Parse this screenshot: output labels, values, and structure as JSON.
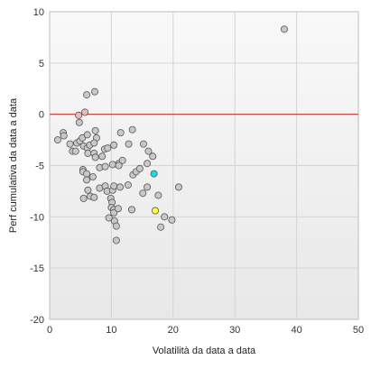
{
  "chart_data": {
    "type": "scatter",
    "title": "",
    "xlabel": "Volatilità da data a data",
    "ylabel": "Perf cumulativa da data a data",
    "xlim": [
      0,
      50
    ],
    "ylim": [
      -20,
      10
    ],
    "x_ticks": [
      "0",
      "10",
      "20",
      "30",
      "40",
      "50"
    ],
    "y_ticks": [
      "10",
      "5",
      "0",
      "-5",
      "-10",
      "-15",
      "-20"
    ],
    "grid": true,
    "reference_line": {
      "y": 0,
      "color": "#c0392b"
    },
    "colors": {
      "point_default": "#c8c8c8",
      "point_pink": "#f0b8b8",
      "point_cyan": "#22d8e6",
      "point_yellow": "#ffff33",
      "point_stroke": "#555555",
      "plot_bg_top": "#f9f9f9",
      "plot_bg_bottom": "#e8e8e8",
      "grid": "#d4d4d4"
    },
    "series": [
      {
        "color": "default",
        "points": [
          [
            38,
            8.3
          ],
          [
            7.3,
            2.2
          ],
          [
            6,
            1.9
          ],
          [
            4.8,
            -0.8
          ],
          [
            1.3,
            -2.5
          ],
          [
            2.2,
            -1.8
          ],
          [
            2.3,
            -2.1
          ],
          [
            3.3,
            -2.9
          ],
          [
            3.7,
            -3.6
          ],
          [
            4.2,
            -3.6
          ],
          [
            4.4,
            -2.8
          ],
          [
            4.9,
            -2.6
          ],
          [
            5.3,
            -2.3
          ],
          [
            6.1,
            -2.0
          ],
          [
            5.5,
            -3.1
          ],
          [
            6.1,
            -3.3
          ],
          [
            6.5,
            -3.0
          ],
          [
            7.4,
            -1.6
          ],
          [
            7.6,
            -2.3
          ],
          [
            7.2,
            -2.8
          ],
          [
            6.2,
            -3.8
          ],
          [
            7.2,
            -3.8
          ],
          [
            7.4,
            -4.2
          ],
          [
            8.5,
            -4.1
          ],
          [
            8.9,
            -3.4
          ],
          [
            9.4,
            -3.3
          ],
          [
            10.4,
            -3.0
          ],
          [
            11.5,
            -1.8
          ],
          [
            13.4,
            -1.5
          ],
          [
            12.8,
            -2.9
          ],
          [
            15.2,
            -2.9
          ],
          [
            16.0,
            -3.6
          ],
          [
            11.2,
            -4.8
          ],
          [
            11.8,
            -4.5
          ],
          [
            10.2,
            -4.9
          ],
          [
            11.2,
            -5.0
          ],
          [
            8.1,
            -5.2
          ],
          [
            9.0,
            -5.1
          ],
          [
            5.4,
            -5.4
          ],
          [
            5.4,
            -5.6
          ],
          [
            6.0,
            -5.8
          ],
          [
            6.0,
            -6.4
          ],
          [
            7.0,
            -6.1
          ],
          [
            8.1,
            -7.2
          ],
          [
            9.0,
            -7.0
          ],
          [
            9.3,
            -7.5
          ],
          [
            10.2,
            -7.4
          ],
          [
            10.4,
            -7.0
          ],
          [
            11.4,
            -7.1
          ],
          [
            12.7,
            -6.9
          ],
          [
            13.5,
            -5.9
          ],
          [
            14.0,
            -5.6
          ],
          [
            14.6,
            -5.3
          ],
          [
            15.8,
            -4.8
          ],
          [
            16.7,
            -4.1
          ],
          [
            6.2,
            -7.4
          ],
          [
            6.6,
            -8.0
          ],
          [
            7.2,
            -8.1
          ],
          [
            5.5,
            -8.2
          ],
          [
            9.9,
            -8.2
          ],
          [
            10.1,
            -8.6
          ],
          [
            10.0,
            -9.1
          ],
          [
            10.4,
            -9.3
          ],
          [
            10.4,
            -9.6
          ],
          [
            10.5,
            -10.4
          ],
          [
            9.6,
            -10.1
          ],
          [
            11.1,
            -9.2
          ],
          [
            13.3,
            -9.3
          ],
          [
            15.1,
            -7.7
          ],
          [
            15.8,
            -7.1
          ],
          [
            17.6,
            -7.9
          ],
          [
            20.9,
            -7.1
          ],
          [
            18.6,
            -10.0
          ],
          [
            19.8,
            -10.3
          ],
          [
            18.0,
            -11.0
          ],
          [
            10.8,
            -10.9
          ],
          [
            10.8,
            -12.3
          ]
        ]
      },
      {
        "color": "pink",
        "points": [
          [
            5.7,
            0.2
          ],
          [
            4.7,
            -0.1
          ]
        ]
      },
      {
        "color": "cyan",
        "points": [
          [
            16.9,
            -5.8
          ]
        ]
      },
      {
        "color": "yellow",
        "points": [
          [
            17.1,
            -9.4
          ]
        ]
      }
    ]
  }
}
